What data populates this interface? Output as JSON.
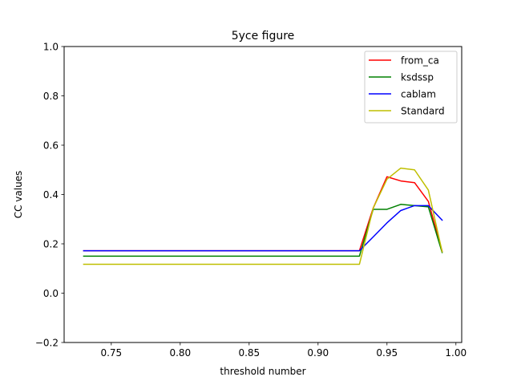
{
  "chart_data": {
    "type": "line",
    "title": "5yce figure",
    "xlabel": "threshold number",
    "ylabel": "CC values",
    "xlim": [
      0.7158,
      1.0042
    ],
    "ylim": [
      -0.2,
      1.0
    ],
    "xticks": [
      0.75,
      0.8,
      0.85,
      0.9,
      0.95,
      1.0
    ],
    "xtick_labels": [
      "0.75",
      "0.80",
      "0.85",
      "0.90",
      "0.95",
      "1.00"
    ],
    "yticks": [
      -0.2,
      0.0,
      0.2,
      0.4,
      0.6,
      0.8,
      1.0
    ],
    "ytick_labels": [
      "−0.2",
      "0.0",
      "0.2",
      "0.4",
      "0.6",
      "0.8",
      "1.0"
    ],
    "grid": false,
    "legend_position": "upper right",
    "x": [
      0.73,
      0.74,
      0.75,
      0.76,
      0.77,
      0.78,
      0.79,
      0.8,
      0.81,
      0.82,
      0.83,
      0.84,
      0.85,
      0.86,
      0.87,
      0.88,
      0.89,
      0.9,
      0.91,
      0.92,
      0.93,
      0.94,
      0.95,
      0.96,
      0.97,
      0.98,
      0.99
    ],
    "series": [
      {
        "name": "from_ca",
        "color": "#ff0000",
        "values": [
          0.172,
          0.172,
          0.172,
          0.172,
          0.172,
          0.172,
          0.172,
          0.172,
          0.172,
          0.172,
          0.172,
          0.172,
          0.172,
          0.172,
          0.172,
          0.172,
          0.172,
          0.172,
          0.172,
          0.172,
          0.172,
          0.345,
          0.472,
          0.455,
          0.448,
          0.372,
          0.17
        ]
      },
      {
        "name": "ksdssp",
        "color": "#008000",
        "values": [
          0.15,
          0.15,
          0.15,
          0.15,
          0.15,
          0.15,
          0.15,
          0.15,
          0.15,
          0.15,
          0.15,
          0.15,
          0.15,
          0.15,
          0.15,
          0.15,
          0.15,
          0.15,
          0.15,
          0.15,
          0.15,
          0.34,
          0.34,
          0.36,
          0.355,
          0.35,
          0.165
        ]
      },
      {
        "name": "cablam",
        "color": "#0000ff",
        "values": [
          0.172,
          0.172,
          0.172,
          0.172,
          0.172,
          0.172,
          0.172,
          0.172,
          0.172,
          0.172,
          0.172,
          0.172,
          0.172,
          0.172,
          0.172,
          0.172,
          0.172,
          0.172,
          0.172,
          0.172,
          0.172,
          0.228,
          0.285,
          0.335,
          0.355,
          0.355,
          0.296
        ]
      },
      {
        "name": "Standard",
        "color": "#bfbf00",
        "values": [
          0.117,
          0.117,
          0.117,
          0.117,
          0.117,
          0.117,
          0.117,
          0.117,
          0.117,
          0.117,
          0.117,
          0.117,
          0.117,
          0.117,
          0.117,
          0.117,
          0.117,
          0.117,
          0.117,
          0.117,
          0.117,
          0.345,
          0.462,
          0.507,
          0.5,
          0.418,
          0.168
        ]
      }
    ]
  }
}
